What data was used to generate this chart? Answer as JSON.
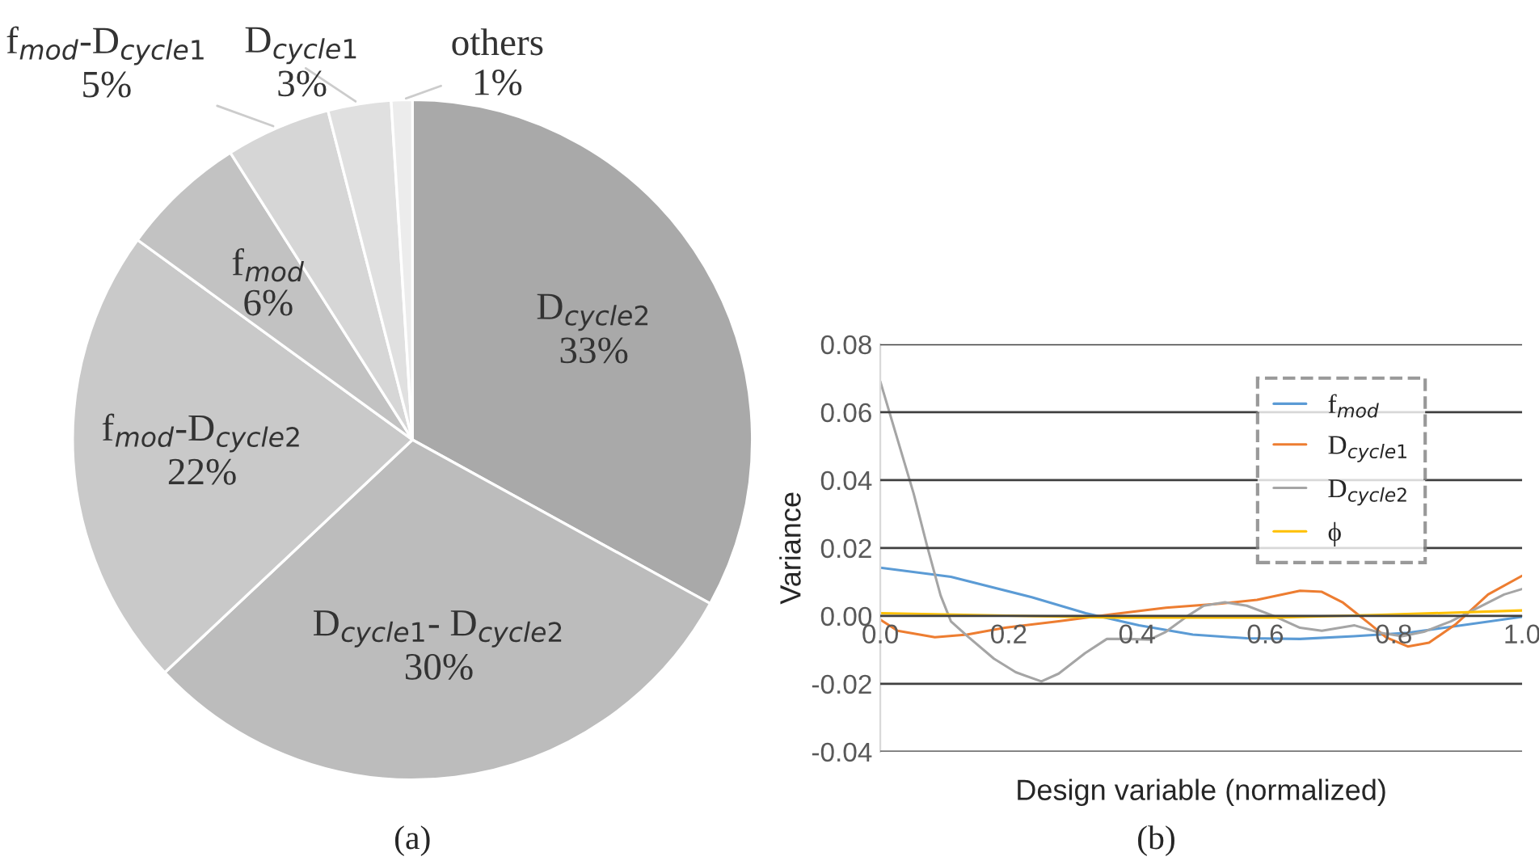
{
  "chart_data": [
    {
      "type": "pie",
      "categories": [
        "D$_{cycle2}$",
        "D$_{cycle1}$- D$_{cycle2}$",
        "f$_{mod}$-D$_{cycle2}$",
        "f$_{mod}$",
        "f$_{mod}$-D$_{cycle1}$",
        "D$_{cycle1}$",
        "others"
      ],
      "values": [
        33,
        30,
        22,
        6,
        5,
        3,
        1
      ],
      "value_labels": [
        "33%",
        "30%",
        "22%",
        "6%",
        "5%",
        "3%",
        "1%"
      ],
      "colors": [
        "#a9a9a9",
        "#bcbcbc",
        "#c9c9c9",
        "#c2c2c2",
        "#d6d6d6",
        "#e0e0e0",
        "#ececec"
      ],
      "annotations": [
        "(a)"
      ]
    },
    {
      "type": "line",
      "xlabel": "Design variable (normalized)",
      "ylabel": "Variance",
      "xlim": [
        0,
        1
      ],
      "xticks": [
        {
          "value": 0,
          "label": "0.0"
        },
        {
          "value": 0.2,
          "label": "0.2"
        },
        {
          "value": 0.4,
          "label": "0.4"
        },
        {
          "value": 0.6,
          "label": "0.6"
        },
        {
          "value": 0.8,
          "label": "0.8"
        },
        {
          "value": 1,
          "label": "1.0"
        }
      ],
      "ylim": [
        -0.04,
        0.08
      ],
      "yticks": [
        {
          "value": -0.04,
          "label": "-0.04"
        },
        {
          "value": -0.02,
          "label": "-0.02"
        },
        {
          "value": 0,
          "label": "0.00"
        },
        {
          "value": 0.02,
          "label": "0.02"
        },
        {
          "value": 0.04,
          "label": "0.04"
        },
        {
          "value": 0.06,
          "label": "0.06"
        },
        {
          "value": 0.08,
          "label": "0.08"
        }
      ],
      "grid": "y",
      "legend": "top right",
      "marker": "none",
      "line_style": "solid",
      "series": [
        {
          "name": "f$_{mod}$",
          "color": "#5b9bd5",
          "x": [
            0,
            0.11,
            0.236,
            0.32,
            0.403,
            0.487,
            0.571,
            0.654,
            0.738,
            0.822,
            0.906,
            1
          ],
          "values": [
            0.0142,
            0.0115,
            0.0055,
            0.0008,
            -0.0028,
            -0.0055,
            -0.0066,
            -0.0068,
            -0.006,
            -0.005,
            -0.0028,
            -0.0003
          ]
        },
        {
          "name": "D$_{cycle1}$",
          "color": "#ed7d31",
          "x": [
            0,
            0.027,
            0.085,
            0.135,
            0.194,
            0.278,
            0.362,
            0.445,
            0.529,
            0.587,
            0.654,
            0.688,
            0.721,
            0.763,
            0.788,
            0.822,
            0.855,
            0.897,
            0.947,
            1
          ],
          "values": [
            -0.0011,
            -0.0044,
            -0.0063,
            -0.0055,
            -0.0035,
            -0.0016,
            0.0005,
            0.0024,
            0.0036,
            0.0047,
            0.0074,
            0.0071,
            0.0039,
            -0.0024,
            -0.0063,
            -0.009,
            -0.0079,
            -0.0024,
            0.0063,
            0.0118
          ]
        },
        {
          "name": "D$_{cycle2}$",
          "color": "#a5a5a5",
          "x": [
            0,
            0.052,
            0.073,
            0.094,
            0.11,
            0.136,
            0.177,
            0.211,
            0.251,
            0.278,
            0.319,
            0.353,
            0.387,
            0.42,
            0.445,
            0.479,
            0.504,
            0.537,
            0.571,
            0.613,
            0.654,
            0.688,
            0.739,
            0.779,
            0.813,
            0.847,
            0.889,
            0.931,
            0.972,
            1
          ],
          "values": [
            0.069,
            0.036,
            0.0205,
            0.006,
            -0.0016,
            -0.006,
            -0.0126,
            -0.0166,
            -0.0193,
            -0.017,
            -0.011,
            -0.0068,
            -0.0068,
            -0.007,
            -0.0047,
            0,
            0.003,
            0.004,
            0.003,
            0,
            -0.0035,
            -0.0044,
            -0.0028,
            -0.005,
            -0.006,
            -0.0047,
            -0.0016,
            0.0024,
            0.0063,
            0.0079
          ]
        },
        {
          "name": "ϕ",
          "color": "#ffc000",
          "x": [
            0,
            0.362,
            0.613,
            0.78,
            1
          ],
          "values": [
            0.0008,
            -0.0005,
            -0.0005,
            0.0003,
            0.0016
          ]
        }
      ],
      "annotations": [
        "(b)"
      ]
    }
  ]
}
